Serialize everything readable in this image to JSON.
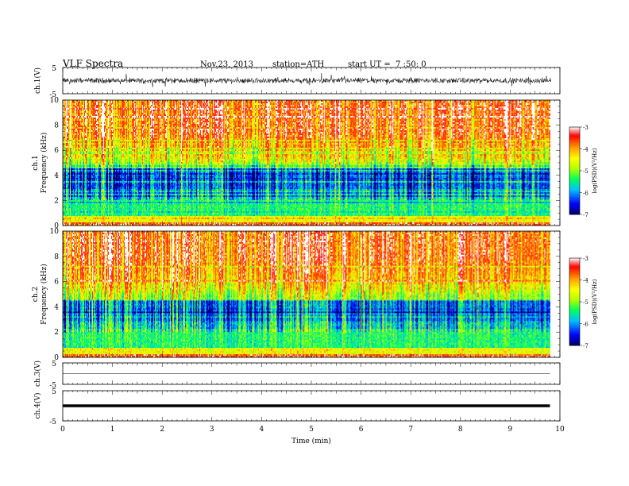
{
  "header": {
    "title": "VLF Spectra",
    "date": "Nov.23, 2013",
    "station": "station=ATH",
    "start": "start UT =  7 :50: 0"
  },
  "chart_data": [
    {
      "type": "line",
      "ylabel": "ch.1(V)",
      "yticks": [
        "5",
        "-5"
      ],
      "ylim": [
        -5,
        5
      ],
      "xlim": [
        0,
        10
      ],
      "description_level": "noisy waveform centred near 0 with amplitude about 1 V, spikes to about 2 V"
    },
    {
      "type": "heatmap",
      "ylabel_top": "ch.1",
      "ylabel": "Frequency (kHz)",
      "yticks": [
        "0",
        "2",
        "4",
        "6",
        "8",
        "10"
      ],
      "ylim": [
        0,
        10
      ],
      "xlim": [
        0,
        9.8
      ],
      "colorbar": {
        "label": "log(PSD)(V²/Hz)",
        "ticks": [
          "-3",
          "-4",
          "-5",
          "-6",
          "-7"
        ],
        "range": [
          -7,
          -3
        ],
        "colors": [
          "#000060",
          "#0000ff",
          "#00c0ff",
          "#00ff60",
          "#b0ff00",
          "#ffff00",
          "#ffa000",
          "#ff0000",
          "#ffffff"
        ]
      }
    },
    {
      "type": "heatmap",
      "ylabel_top": "ch.2",
      "ylabel": "Frequency (kHz)",
      "yticks": [
        "0",
        "2",
        "4",
        "6",
        "8",
        "10"
      ],
      "ylim": [
        0,
        10
      ],
      "xlim": [
        0,
        9.8
      ],
      "colorbar": {
        "label": "log(PSD)(V²/Hz)",
        "ticks": [
          "-3",
          "-4",
          "-5",
          "-6",
          "-7"
        ],
        "range": [
          -7,
          -3
        ]
      }
    },
    {
      "type": "line",
      "ylabel": "ch.3(V)",
      "yticks": [
        "5",
        "-5"
      ],
      "ylim": [
        -5,
        5
      ],
      "xlim": [
        0,
        9.8
      ],
      "level": 0
    },
    {
      "type": "line",
      "ylabel": "ch.4(V)",
      "yticks": [
        "5",
        "-5"
      ],
      "ylim": [
        -5,
        5
      ],
      "xlim": [
        0,
        9.8
      ],
      "level": 0
    }
  ],
  "xaxis": {
    "label": "Time (min)",
    "ticks": [
      "0",
      "1",
      "2",
      "3",
      "4",
      "5",
      "6",
      "7",
      "8",
      "9",
      "10"
    ],
    "range": [
      0,
      10
    ]
  }
}
